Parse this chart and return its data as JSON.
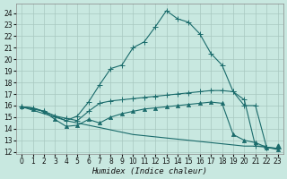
{
  "xlabel": "Humidex (Indice chaleur)",
  "bg_color": "#c8e8e0",
  "grid_color": "#a8c8c0",
  "line_color": "#1a6b6b",
  "xlim": [
    -0.5,
    23.5
  ],
  "ylim": [
    11.8,
    24.8
  ],
  "x_ticks": [
    0,
    1,
    2,
    3,
    4,
    5,
    6,
    7,
    8,
    9,
    10,
    11,
    12,
    13,
    14,
    15,
    16,
    17,
    18,
    19,
    20,
    21,
    22,
    23
  ],
  "y_ticks": [
    12,
    13,
    14,
    15,
    16,
    17,
    18,
    19,
    20,
    21,
    22,
    23,
    24
  ],
  "curve1_x": [
    0,
    1,
    2,
    3,
    4,
    5,
    6,
    7,
    8,
    9,
    10,
    11,
    12,
    13,
    14,
    15,
    16,
    17,
    18,
    19,
    20,
    21,
    22,
    23
  ],
  "curve1_y": [
    15.9,
    15.8,
    15.5,
    15.1,
    14.7,
    15.1,
    16.3,
    17.8,
    19.2,
    19.5,
    21.0,
    21.5,
    22.8,
    24.2,
    23.5,
    23.2,
    22.2,
    20.5,
    19.5,
    17.2,
    16.0,
    16.0,
    12.4,
    12.3
  ],
  "curve2_x": [
    0,
    1,
    2,
    3,
    4,
    5,
    6,
    7,
    8,
    9,
    10,
    11,
    12,
    13,
    14,
    15,
    16,
    17,
    18,
    19,
    20,
    21,
    22,
    23
  ],
  "curve2_y": [
    15.9,
    15.8,
    15.5,
    15.1,
    14.9,
    14.7,
    15.5,
    16.2,
    16.4,
    16.5,
    16.6,
    16.7,
    16.8,
    16.9,
    17.0,
    17.1,
    17.2,
    17.3,
    17.3,
    17.2,
    16.5,
    12.5,
    12.4,
    12.3
  ],
  "curve3_x": [
    0,
    1,
    2,
    3,
    4,
    5,
    6,
    7,
    8,
    9,
    10,
    11,
    12,
    13,
    14,
    15,
    16,
    17,
    18,
    19,
    20,
    21,
    22,
    23
  ],
  "curve3_y": [
    15.9,
    15.6,
    15.3,
    15.0,
    14.7,
    14.5,
    14.3,
    14.1,
    13.9,
    13.7,
    13.5,
    13.4,
    13.3,
    13.2,
    13.1,
    13.0,
    12.9,
    12.8,
    12.7,
    12.6,
    12.5,
    12.5,
    12.5,
    12.5
  ],
  "curve4_x": [
    0,
    1,
    2,
    3,
    4,
    5,
    6,
    7,
    8,
    9,
    10,
    11,
    12,
    13,
    14,
    15,
    16,
    17,
    18,
    19,
    20,
    21,
    22,
    23
  ],
  "curve4_y": [
    15.9,
    15.7,
    15.5,
    14.8,
    14.2,
    14.3,
    14.8,
    14.5,
    15.0,
    15.3,
    15.5,
    15.7,
    15.8,
    15.9,
    16.0,
    16.1,
    16.2,
    16.3,
    16.2,
    13.5,
    13.0,
    12.8,
    12.4,
    12.2
  ]
}
